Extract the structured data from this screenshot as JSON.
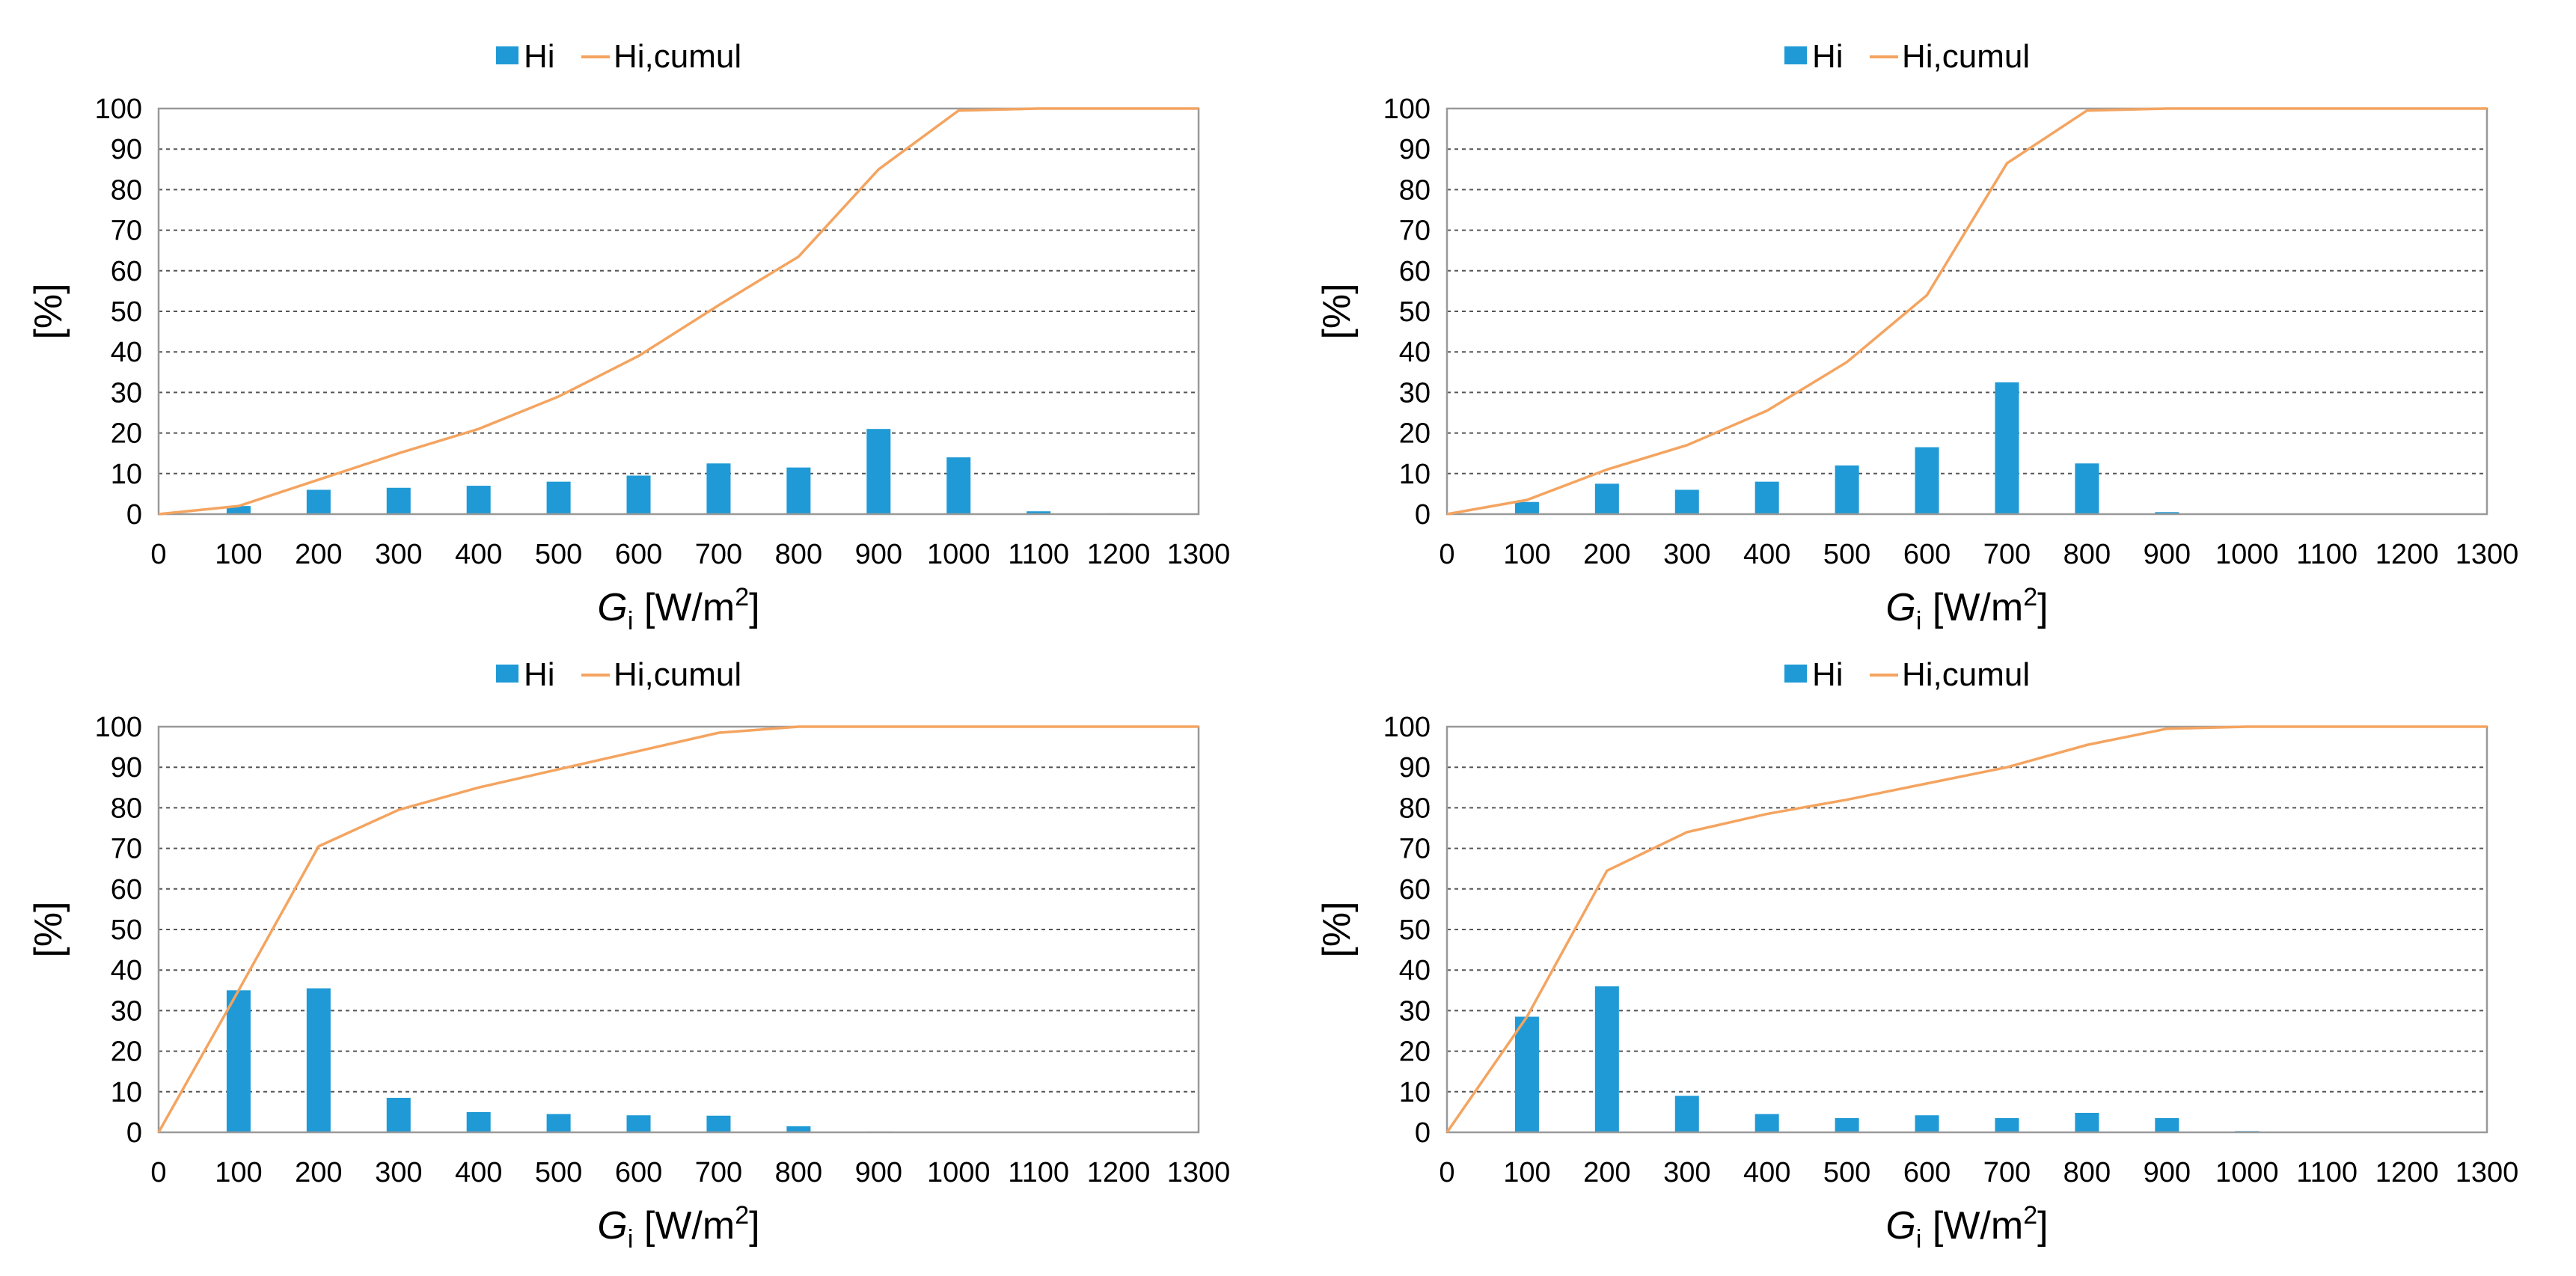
{
  "colors": {
    "bar": "#1f9ad6",
    "line": "#f4a460",
    "grid": "#555555"
  },
  "chart_data": [
    {
      "type": "bar",
      "series": [
        {
          "name": "Hi",
          "kind": "bar",
          "x": [
            100,
            200,
            300,
            400,
            500,
            600,
            700,
            800,
            900,
            1000,
            1100,
            1200
          ],
          "values": [
            2,
            6,
            6.5,
            7,
            8,
            9.5,
            12.5,
            11.5,
            21,
            14,
            0.7,
            0.2
          ]
        },
        {
          "name": "Hi,cumul",
          "kind": "line",
          "x": [
            0,
            100,
            200,
            300,
            400,
            500,
            600,
            700,
            800,
            900,
            1000,
            1100,
            1200,
            1300
          ],
          "values": [
            0,
            2,
            8.5,
            15,
            21,
            29,
            39,
            51.5,
            63.5,
            85,
            99.5,
            100,
            100,
            100
          ]
        }
      ],
      "legend": [
        "Hi",
        "Hi,cumul"
      ],
      "xlabel_main": "G",
      "xlabel_sub": "i",
      "xlabel_unit": " [W/m",
      "xlabel_sup": "2",
      "xlabel_end": "]",
      "ylabel": "[%]",
      "xticks": [
        "0",
        "100",
        "200",
        "300",
        "400",
        "500",
        "600",
        "700",
        "800",
        "900",
        "1000",
        "1100",
        "1200",
        "1300"
      ],
      "yticks": [
        "0",
        "10",
        "20",
        "30",
        "40",
        "50",
        "60",
        "70",
        "80",
        "90",
        "100"
      ],
      "xlim": [
        0,
        1300
      ],
      "ylim": [
        0,
        100
      ],
      "grid": true,
      "legend_position": "top"
    },
    {
      "type": "bar",
      "series": [
        {
          "name": "Hi",
          "kind": "bar",
          "x": [
            100,
            200,
            300,
            400,
            500,
            600,
            700,
            800,
            900
          ],
          "values": [
            3,
            7.5,
            6,
            8,
            12,
            16.5,
            32.5,
            12.5,
            0.5
          ]
        },
        {
          "name": "Hi,cumul",
          "kind": "line",
          "x": [
            0,
            100,
            200,
            300,
            400,
            500,
            600,
            700,
            800,
            900,
            1000,
            1100,
            1200,
            1300
          ],
          "values": [
            0,
            3.5,
            11,
            17,
            25.5,
            37.5,
            54,
            86.5,
            99.5,
            100,
            100,
            100,
            100,
            100
          ]
        }
      ],
      "legend": [
        "Hi",
        "Hi,cumul"
      ],
      "xlabel_main": "G",
      "xlabel_sub": "i",
      "xlabel_unit": " [W/m",
      "xlabel_sup": "2",
      "xlabel_end": "]",
      "ylabel": "[%]",
      "xticks": [
        "0",
        "100",
        "200",
        "300",
        "400",
        "500",
        "600",
        "700",
        "800",
        "900",
        "1000",
        "1100",
        "1200",
        "1300"
      ],
      "yticks": [
        "0",
        "10",
        "20",
        "30",
        "40",
        "50",
        "60",
        "70",
        "80",
        "90",
        "100"
      ],
      "xlim": [
        0,
        1300
      ],
      "ylim": [
        0,
        100
      ],
      "grid": true,
      "legend_position": "top"
    },
    {
      "type": "bar",
      "series": [
        {
          "name": "Hi",
          "kind": "bar",
          "x": [
            100,
            200,
            300,
            400,
            500,
            600,
            700,
            800,
            900
          ],
          "values": [
            35,
            35.5,
            8.5,
            5,
            4.5,
            4.2,
            4.1,
            1.5,
            0.2
          ]
        },
        {
          "name": "Hi,cumul",
          "kind": "line",
          "x": [
            0,
            100,
            200,
            300,
            400,
            500,
            600,
            700,
            800,
            900,
            1000,
            1100,
            1200,
            1300
          ],
          "values": [
            0,
            35,
            70.5,
            79.5,
            85,
            89.5,
            94,
            98.5,
            100,
            100,
            100,
            100,
            100,
            100
          ]
        }
      ],
      "legend": [
        "Hi",
        "Hi,cumul"
      ],
      "xlabel_main": "G",
      "xlabel_sub": "i",
      "xlabel_unit": " [W/m",
      "xlabel_sup": "2",
      "xlabel_end": "]",
      "ylabel": "[%]",
      "xticks": [
        "0",
        "100",
        "200",
        "300",
        "400",
        "500",
        "600",
        "700",
        "800",
        "900",
        "1000",
        "1100",
        "1200",
        "1300"
      ],
      "yticks": [
        "0",
        "10",
        "20",
        "30",
        "40",
        "50",
        "60",
        "70",
        "80",
        "90",
        "100"
      ],
      "xlim": [
        0,
        1300
      ],
      "ylim": [
        0,
        100
      ],
      "grid": true,
      "legend_position": "top"
    },
    {
      "type": "bar",
      "series": [
        {
          "name": "Hi",
          "kind": "bar",
          "x": [
            100,
            200,
            300,
            400,
            500,
            600,
            700,
            800,
            900,
            1000
          ],
          "values": [
            28.5,
            36,
            9,
            4.5,
            3.5,
            4.2,
            3.5,
            4.8,
            3.5,
            0.3
          ]
        },
        {
          "name": "Hi,cumul",
          "kind": "line",
          "x": [
            0,
            100,
            200,
            300,
            400,
            500,
            600,
            700,
            800,
            900,
            1000,
            1100,
            1200,
            1300
          ],
          "values": [
            0,
            28.5,
            64.5,
            74,
            78.5,
            82,
            86,
            90,
            95.5,
            99.5,
            100,
            100,
            100,
            100
          ]
        }
      ],
      "legend": [
        "Hi",
        "Hi,cumul"
      ],
      "xlabel_main": "G",
      "xlabel_sub": "i",
      "xlabel_unit": " [W/m",
      "xlabel_sup": "2",
      "xlabel_end": "]",
      "ylabel": "[%]",
      "xticks": [
        "0",
        "100",
        "200",
        "300",
        "400",
        "500",
        "600",
        "700",
        "800",
        "900",
        "1000",
        "1100",
        "1200",
        "1300"
      ],
      "yticks": [
        "0",
        "10",
        "20",
        "30",
        "40",
        "50",
        "60",
        "70",
        "80",
        "90",
        "100"
      ],
      "xlim": [
        0,
        1300
      ],
      "ylim": [
        0,
        100
      ],
      "grid": true,
      "legend_position": "top"
    }
  ]
}
